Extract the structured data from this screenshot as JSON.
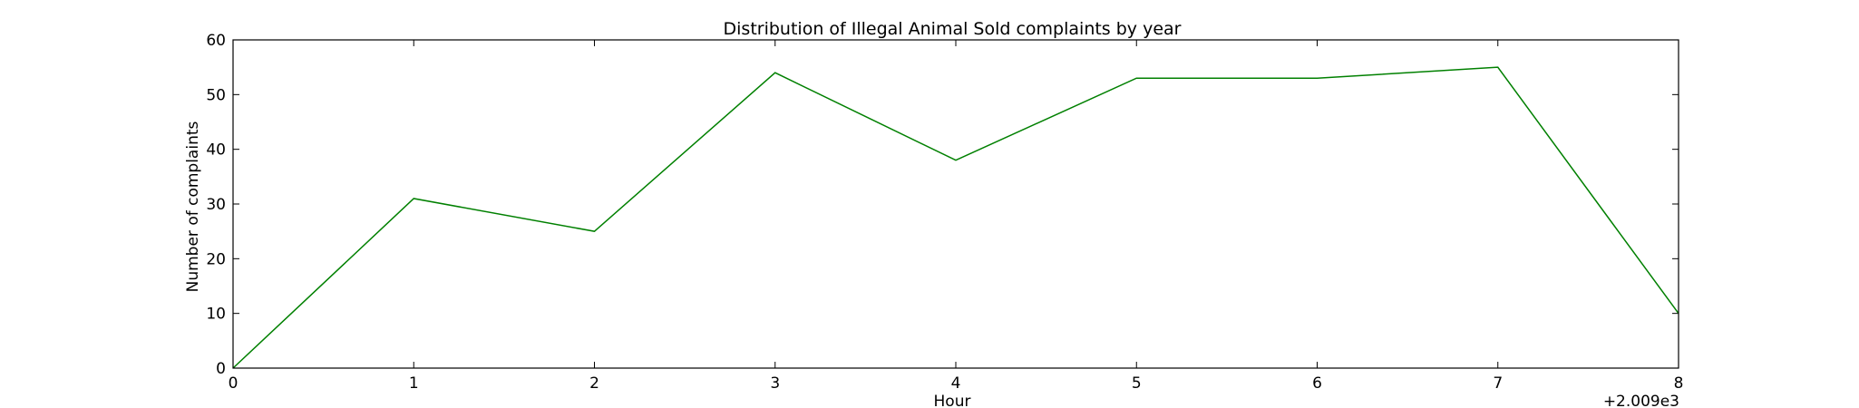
{
  "chart_data": {
    "type": "line",
    "title": "Distribution of  Illegal Animal Sold complaints by year",
    "xlabel": "Hour",
    "ylabel": "Number of complaints",
    "x_offset_label": "+2.009e3",
    "x": [
      0,
      1,
      2,
      3,
      4,
      5,
      6,
      7,
      8
    ],
    "series": [
      {
        "values": [
          0,
          31,
          25,
          54,
          38,
          53,
          53,
          55,
          10
        ]
      }
    ],
    "xlim": [
      0,
      8
    ],
    "ylim": [
      0,
      60
    ],
    "xticks": [
      0,
      1,
      2,
      3,
      4,
      5,
      6,
      7,
      8
    ],
    "yticks": [
      0,
      10,
      20,
      30,
      40,
      50,
      60
    ],
    "grid": false,
    "colors": {
      "line": "#008000",
      "axes": "#000000"
    }
  }
}
